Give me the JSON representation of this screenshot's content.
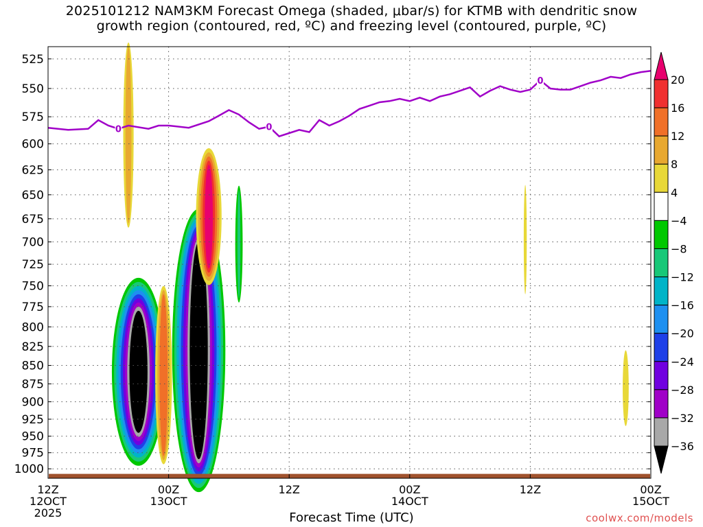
{
  "title": {
    "line1": "2025101212 NAM3KM Forecast Omega (shaded, μbar/s) for KTMB with dendritic snow",
    "line2": "growth region (contoured, red, ºC) and freezing level (contoured, purple, ºC)"
  },
  "credit": "coolwx.com/models",
  "chart_data": {
    "type": "heatmap",
    "title": "2025101212 NAM3KM Forecast Omega (shaded, μbar/s) for KTMB with dendritic snow growth region (contoured, red, ºC) and freezing level (contoured, purple, ºC)",
    "xlabel": "Forecast Time (UTC)",
    "ylabel": "",
    "x_unit": "forecast hour from 2025-10-12 12Z",
    "xlim": [
      0,
      60
    ],
    "ylim": [
      1015,
      515
    ],
    "y_scale": "log (pressure, hPa)",
    "grid": true,
    "y_ticks": [
      525,
      550,
      575,
      600,
      625,
      650,
      675,
      700,
      725,
      750,
      775,
      800,
      825,
      850,
      875,
      900,
      925,
      950,
      975,
      1000
    ],
    "x_ticks": [
      {
        "hour": 0,
        "line1": "12Z",
        "line2": "12OCT",
        "line3": "2025"
      },
      {
        "hour": 12,
        "line1": "00Z",
        "line2": "13OCT",
        "line3": ""
      },
      {
        "hour": 24,
        "line1": "12Z",
        "line2": "",
        "line3": ""
      },
      {
        "hour": 36,
        "line1": "00Z",
        "line2": "14OCT",
        "line3": ""
      },
      {
        "hour": 48,
        "line1": "12Z",
        "line2": "",
        "line3": ""
      },
      {
        "hour": 60,
        "line1": "00Z",
        "line2": "15OCT",
        "line3": ""
      }
    ],
    "colorbar": {
      "labels": [
        "20",
        "16",
        "12",
        "8",
        "4",
        "−4",
        "−8",
        "−12",
        "−16",
        "−20",
        "−24",
        "−28",
        "−32",
        "−36"
      ],
      "colors": [
        "#e8006e",
        "#f03030",
        "#f07028",
        "#e8a830",
        "#e8d838",
        "#ffffff",
        "#00c800",
        "#18c878",
        "#00b4c8",
        "#1e90f0",
        "#1e40e8",
        "#7000e0",
        "#a000c8",
        "#a8a8a8",
        "#000000"
      ]
    },
    "freezing_level": {
      "color": "#a000c8",
      "label": "0",
      "label_hours": [
        7,
        22,
        49
      ],
      "points": [
        [
          0,
          585
        ],
        [
          2,
          587
        ],
        [
          4,
          586
        ],
        [
          5,
          578
        ],
        [
          6,
          583
        ],
        [
          7,
          586
        ],
        [
          8,
          583
        ],
        [
          10,
          586
        ],
        [
          11,
          583
        ],
        [
          12,
          583
        ],
        [
          14,
          585
        ],
        [
          16,
          579
        ],
        [
          17,
          574
        ],
        [
          18,
          569
        ],
        [
          19,
          573
        ],
        [
          20,
          580
        ],
        [
          21,
          586
        ],
        [
          22,
          584
        ],
        [
          23,
          593
        ],
        [
          24,
          590
        ],
        [
          25,
          587
        ],
        [
          26,
          589
        ],
        [
          27,
          578
        ],
        [
          28,
          583
        ],
        [
          29,
          579
        ],
        [
          30,
          574
        ],
        [
          31,
          568
        ],
        [
          32,
          565
        ],
        [
          33,
          562
        ],
        [
          34,
          561
        ],
        [
          35,
          559
        ],
        [
          36,
          561
        ],
        [
          37,
          558
        ],
        [
          38,
          561
        ],
        [
          39,
          557
        ],
        [
          40,
          555
        ],
        [
          41,
          552
        ],
        [
          42,
          549
        ],
        [
          43,
          557
        ],
        [
          44,
          552
        ],
        [
          45,
          548
        ],
        [
          46,
          551
        ],
        [
          47,
          553
        ],
        [
          48,
          551
        ],
        [
          49,
          543
        ],
        [
          50,
          550
        ],
        [
          51,
          551
        ],
        [
          52,
          551
        ],
        [
          53,
          548
        ],
        [
          54,
          545
        ],
        [
          55,
          543
        ],
        [
          56,
          540
        ],
        [
          57,
          541
        ],
        [
          58,
          538
        ],
        [
          59,
          536
        ],
        [
          60,
          535
        ]
      ]
    },
    "omega_features": [
      {
        "value": -36,
        "hour": 9.0,
        "p_top": 780,
        "p_bot": 945,
        "half_width_hr": 0.9
      },
      {
        "value": -36,
        "hour": 15.0,
        "p_top": 700,
        "p_bot": 985,
        "half_width_hr": 0.9
      },
      {
        "value": 20,
        "hour": 16.0,
        "p_top": 620,
        "p_bot": 730,
        "half_width_hr": 0.4
      },
      {
        "value": 8,
        "hour": 8.0,
        "p_top": 515,
        "p_bot": 680,
        "half_width_hr": 0.3
      },
      {
        "value": 12,
        "hour": 11.5,
        "p_top": 760,
        "p_bot": 980,
        "half_width_hr": 0.4
      },
      {
        "value": -8,
        "hour": 19.0,
        "p_top": 645,
        "p_bot": 765,
        "half_width_hr": 0.15
      },
      {
        "value": 4,
        "hour": 47.5,
        "p_top": 640,
        "p_bot": 760,
        "half_width_hr": 0.15
      },
      {
        "value": 4,
        "hour": 57.5,
        "p_top": 830,
        "p_bot": 935,
        "half_width_hr": 0.3
      }
    ]
  }
}
